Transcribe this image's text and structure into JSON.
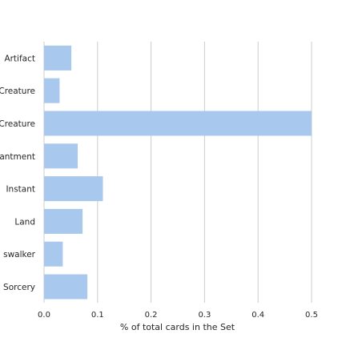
{
  "chart_data": {
    "type": "bar",
    "orientation": "horizontal",
    "categories": [
      "Artifact",
      "Artifact Creature",
      "Creature",
      "Enchantment",
      "Instant",
      "Land",
      "Planeswalker",
      "Sorcery"
    ],
    "visible_category_labels": [
      "Artifact",
      "Creature",
      "Creature",
      "antment",
      "Instant",
      "Land",
      "swalker",
      "Sorcery"
    ],
    "values": [
      0.051,
      0.029,
      0.5,
      0.063,
      0.11,
      0.072,
      0.035,
      0.081
    ],
    "xlabel": "% of total cards in the Set",
    "ylabel": "",
    "xlim": [
      0,
      0.5
    ],
    "xticks": [
      0.0,
      0.1,
      0.2,
      0.3,
      0.4,
      0.5
    ],
    "xtick_labels": [
      "0.0",
      "0.1",
      "0.2",
      "0.3",
      "0.4",
      "0.5"
    ],
    "grid": "vertical",
    "bar_color": "#a9c8ed",
    "grid_color": "#cccccc"
  }
}
